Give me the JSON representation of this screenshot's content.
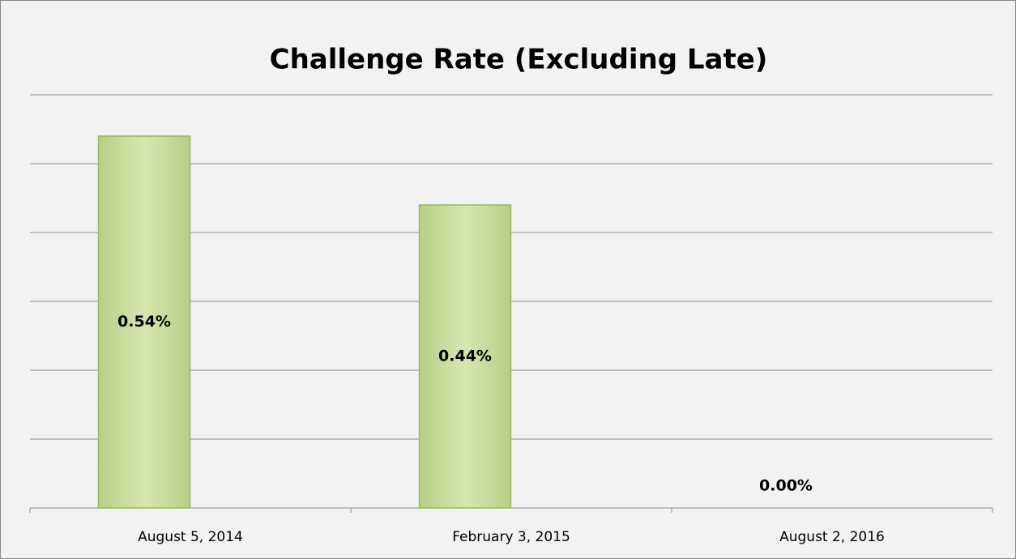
{
  "chart_data": {
    "type": "bar",
    "title": "Challenge Rate (Excluding Late)",
    "categories": [
      "August 5, 2014",
      "February 3, 2015",
      "August 2, 2016"
    ],
    "values": [
      0.54,
      0.44,
      0.0
    ],
    "value_labels": [
      "0.54%",
      "0.44%",
      "0.00%"
    ],
    "color": "#cfe09f",
    "ylim": [
      0,
      0.6
    ],
    "yticks": [
      0,
      0.1,
      0.2,
      0.3,
      0.4,
      0.5,
      0.6
    ],
    "grid": true
  }
}
